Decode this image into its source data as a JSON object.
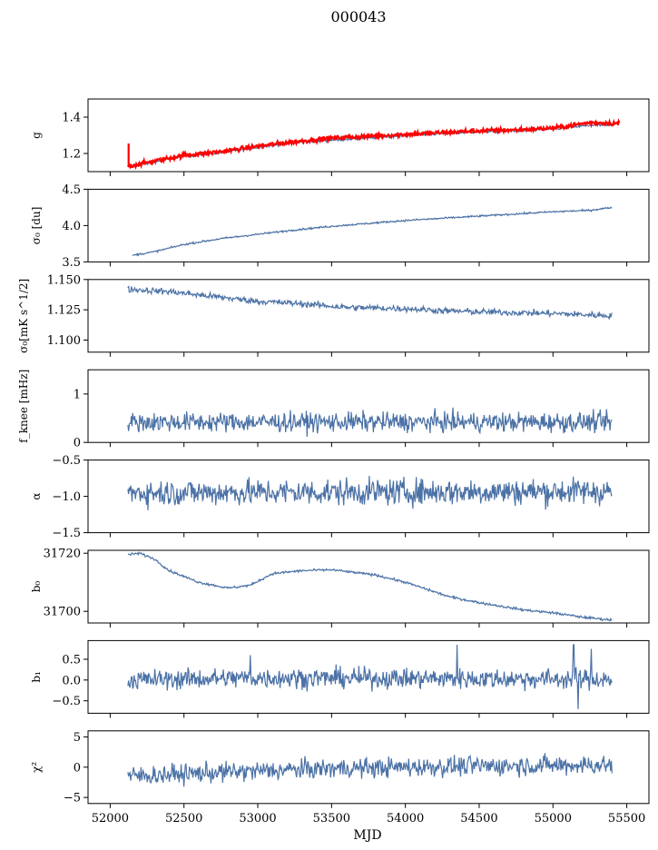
{
  "figure": {
    "title": "000043"
  },
  "colors": {
    "series": "#4c72a6",
    "highlight": "#ff0000",
    "axis": "#000000"
  },
  "chart_data": {
    "type": "line",
    "xlabel": "MJD",
    "xlim": [
      51850,
      55650
    ],
    "xticks": [
      52000,
      52500,
      53000,
      53500,
      54000,
      54500,
      55000,
      55500
    ],
    "xtick_labels": [
      "52000",
      "52500",
      "53000",
      "53500",
      "54000",
      "54500",
      "55000",
      "55500"
    ],
    "x_range": [
      52120,
      55400
    ],
    "grid": false,
    "legend": "none",
    "panels": [
      {
        "id": "g",
        "ylabel": "g",
        "ylim": [
          1.1,
          1.5
        ],
        "yticks": [
          1.2,
          1.4
        ],
        "ytick_labels": [
          "1.2",
          "1.4"
        ],
        "series": [
          {
            "color": "#4c72a6",
            "trend": [
              [
                52120,
                1.125
              ],
              [
                52250,
                1.145
              ],
              [
                52500,
                1.185
              ],
              [
                52750,
                1.205
              ],
              [
                53000,
                1.235
              ],
              [
                53250,
                1.26
              ],
              [
                53500,
                1.275
              ],
              [
                53750,
                1.285
              ],
              [
                54000,
                1.3
              ],
              [
                54250,
                1.31
              ],
              [
                54500,
                1.32
              ],
              [
                54750,
                1.325
              ],
              [
                55000,
                1.335
              ],
              [
                55250,
                1.355
              ],
              [
                55400,
                1.355
              ]
            ],
            "noise": 0.004
          },
          {
            "color": "#ff0000",
            "trend": [
              [
                52120,
                1.13
              ],
              [
                52250,
                1.15
              ],
              [
                52500,
                1.19
              ],
              [
                52750,
                1.21
              ],
              [
                53000,
                1.24
              ],
              [
                53250,
                1.265
              ],
              [
                53500,
                1.285
              ],
              [
                53750,
                1.295
              ],
              [
                54000,
                1.305
              ],
              [
                54250,
                1.315
              ],
              [
                54500,
                1.325
              ],
              [
                54750,
                1.33
              ],
              [
                55000,
                1.34
              ],
              [
                55250,
                1.37
              ],
              [
                55450,
                1.365
              ]
            ],
            "noise": 0.006,
            "spike": [
              52125,
              1.255
            ]
          }
        ]
      },
      {
        "id": "sigma0",
        "ylabel": "σ₀ [du]",
        "ylim": [
          3.5,
          4.5
        ],
        "yticks": [
          3.5,
          4.0,
          4.5
        ],
        "ytick_labels": [
          "3.5",
          "4.0",
          "4.5"
        ],
        "series": [
          {
            "color": "#4c72a6",
            "trend": [
              [
                52150,
                3.59
              ],
              [
                52300,
                3.64
              ],
              [
                52500,
                3.74
              ],
              [
                52750,
                3.82
              ],
              [
                53000,
                3.88
              ],
              [
                53250,
                3.94
              ],
              [
                53500,
                3.99
              ],
              [
                53750,
                4.03
              ],
              [
                54000,
                4.07
              ],
              [
                54250,
                4.1
              ],
              [
                54500,
                4.13
              ],
              [
                54750,
                4.16
              ],
              [
                55000,
                4.19
              ],
              [
                55250,
                4.21
              ],
              [
                55400,
                4.25
              ]
            ],
            "noise": 0.006
          }
        ]
      },
      {
        "id": "sigma0_mks",
        "ylabel": "σ₀[mK s^1/2]",
        "ylim": [
          1.09,
          1.15
        ],
        "yticks": [
          1.1,
          1.125,
          1.15
        ],
        "ytick_labels": [
          "1.100",
          "1.125",
          "1.150"
        ],
        "series": [
          {
            "color": "#4c72a6",
            "trend": [
              [
                52120,
                1.142
              ],
              [
                52400,
                1.14
              ],
              [
                52700,
                1.136
              ],
              [
                53000,
                1.132
              ],
              [
                53300,
                1.13
              ],
              [
                53600,
                1.127
              ],
              [
                54000,
                1.126
              ],
              [
                54300,
                1.124
              ],
              [
                54600,
                1.123
              ],
              [
                55000,
                1.122
              ],
              [
                55400,
                1.12
              ]
            ],
            "noise": 0.0013
          }
        ]
      },
      {
        "id": "fknee",
        "ylabel": "f_knee [mHz]",
        "ylim": [
          0,
          1.5
        ],
        "yticks": [
          0,
          1
        ],
        "ytick_labels": [
          "0",
          "1"
        ],
        "series": [
          {
            "color": "#4c72a6",
            "trend": [
              [
                52120,
                0.42
              ],
              [
                55400,
                0.42
              ]
            ],
            "noise": 0.1
          }
        ]
      },
      {
        "id": "alpha",
        "ylabel": "α",
        "ylim": [
          -1.5,
          -0.5
        ],
        "yticks": [
          -1.5,
          -1.0,
          -0.5
        ],
        "ytick_labels": [
          "−1.5",
          "−1.0",
          "−0.5"
        ],
        "series": [
          {
            "color": "#4c72a6",
            "trend": [
              [
                52120,
                -0.95
              ],
              [
                55400,
                -0.93
              ]
            ],
            "noise": 0.09
          }
        ]
      },
      {
        "id": "b0",
        "ylabel": "b₀",
        "ylim": [
          31696,
          31721
        ],
        "yticks": [
          31700,
          31720
        ],
        "ytick_labels": [
          "31700",
          "31720"
        ],
        "series": [
          {
            "color": "#4c72a6",
            "trend": [
              [
                52120,
                31719.5
              ],
              [
                52200,
                31720
              ],
              [
                52300,
                31718
              ],
              [
                52400,
                31714
              ],
              [
                52600,
                31710
              ],
              [
                52800,
                31708
              ],
              [
                52950,
                31709
              ],
              [
                53100,
                31713
              ],
              [
                53300,
                31714
              ],
              [
                53500,
                31714.3
              ],
              [
                53800,
                31712.5
              ],
              [
                54000,
                31710
              ],
              [
                54300,
                31705
              ],
              [
                54500,
                31703
              ],
              [
                54800,
                31700.5
              ],
              [
                55000,
                31699.5
              ],
              [
                55200,
                31698
              ],
              [
                55400,
                31697
              ]
            ],
            "noise": 0.2
          }
        ]
      },
      {
        "id": "b1",
        "ylabel": "b₁",
        "ylim": [
          -0.8,
          0.95
        ],
        "yticks": [
          -0.5,
          0.0,
          0.5
        ],
        "ytick_labels": [
          "−0.5",
          "0.0",
          "0.5"
        ],
        "series": [
          {
            "color": "#4c72a6",
            "trend": [
              [
                52120,
                0.0
              ],
              [
                52900,
                0.05
              ],
              [
                53400,
                0.05
              ],
              [
                55400,
                0.02
              ]
            ],
            "noise": 0.12,
            "spikes": [
              [
                52950,
                0.6
              ],
              [
                54350,
                0.85
              ],
              [
                55140,
                0.85
              ],
              [
                55170,
                -0.7
              ],
              [
                55260,
                0.75
              ]
            ]
          }
        ]
      },
      {
        "id": "chi2",
        "ylabel": "χ²",
        "ylim": [
          -6,
          6
        ],
        "yticks": [
          -5,
          0,
          5
        ],
        "ytick_labels": [
          "−5",
          "0",
          "5"
        ],
        "series": [
          {
            "color": "#4c72a6",
            "trend": [
              [
                52120,
                -1.5
              ],
              [
                52800,
                -0.8
              ],
              [
                53500,
                -0.2
              ],
              [
                54500,
                0.2
              ],
              [
                55400,
                0.4
              ]
            ],
            "noise": 0.8
          }
        ]
      }
    ]
  }
}
